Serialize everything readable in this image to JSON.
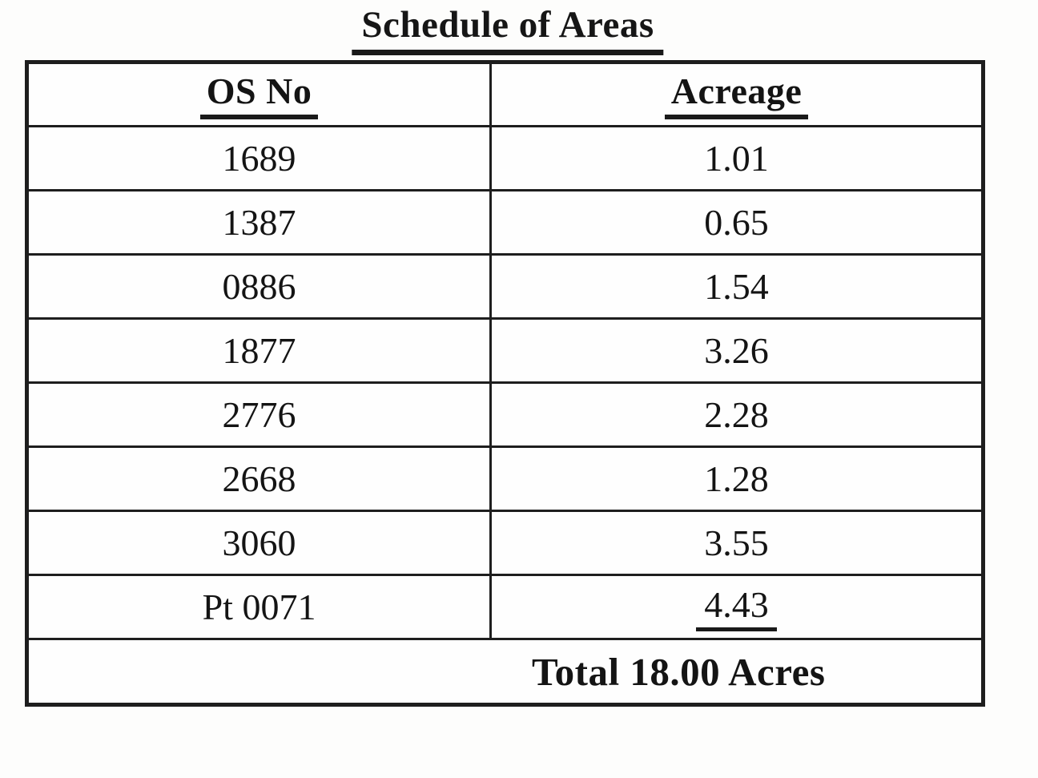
{
  "title": "Schedule of Areas",
  "table": {
    "headers": {
      "os_no": "OS No",
      "acreage": "Acreage"
    },
    "rows": [
      {
        "os_no": "1689",
        "acreage": "1.01"
      },
      {
        "os_no": "1387",
        "acreage": "0.65"
      },
      {
        "os_no": "0886",
        "acreage": "1.54"
      },
      {
        "os_no": "1877",
        "acreage": "3.26"
      },
      {
        "os_no": "2776",
        "acreage": "2.28"
      },
      {
        "os_no": "2668",
        "acreage": "1.28"
      },
      {
        "os_no": "3060",
        "acreage": "3.55"
      },
      {
        "os_no": "Pt 0071",
        "acreage": "4.43"
      }
    ],
    "total_label": "Total 18.00 Acres"
  },
  "colors": {
    "ink": "#1a1a1a",
    "paper": "#fdfdfc"
  }
}
